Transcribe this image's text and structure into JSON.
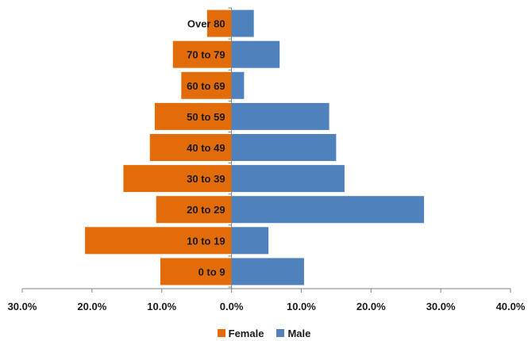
{
  "chart_data": {
    "type": "bar",
    "orientation": "horizontal",
    "categories": [
      "0 to 9",
      "10 to 19",
      "20 to 29",
      "30 to 39",
      "40 to 49",
      "50 to 59",
      "60 to 69",
      "70 to 79",
      "Over 80"
    ],
    "series": [
      {
        "name": "Female",
        "color": "#E36C0A",
        "values": [
          -10.2,
          -21.0,
          -10.8,
          -15.5,
          -11.7,
          -11.0,
          -7.2,
          -8.4,
          -3.5
        ]
      },
      {
        "name": "Male",
        "color": "#4F81BD",
        "values": [
          10.4,
          5.3,
          27.6,
          16.2,
          15.0,
          14.0,
          1.8,
          6.9,
          3.2
        ]
      }
    ],
    "xlim": [
      -30,
      40
    ],
    "x_ticks": [
      -30,
      -20,
      -10,
      0,
      10,
      20,
      30,
      40
    ],
    "x_tick_labels": [
      "30.0%",
      "20.0%",
      "10.0%",
      "0.0%",
      "10.0%",
      "20.0%",
      "30.0%",
      "40.0%"
    ],
    "title": "",
    "xlabel": "",
    "ylabel": "",
    "grid": false,
    "legend_position": "bottom"
  },
  "legend": {
    "items": [
      {
        "label": "Female",
        "color": "#E36C0A"
      },
      {
        "label": "Male",
        "color": "#4F81BD"
      }
    ]
  }
}
